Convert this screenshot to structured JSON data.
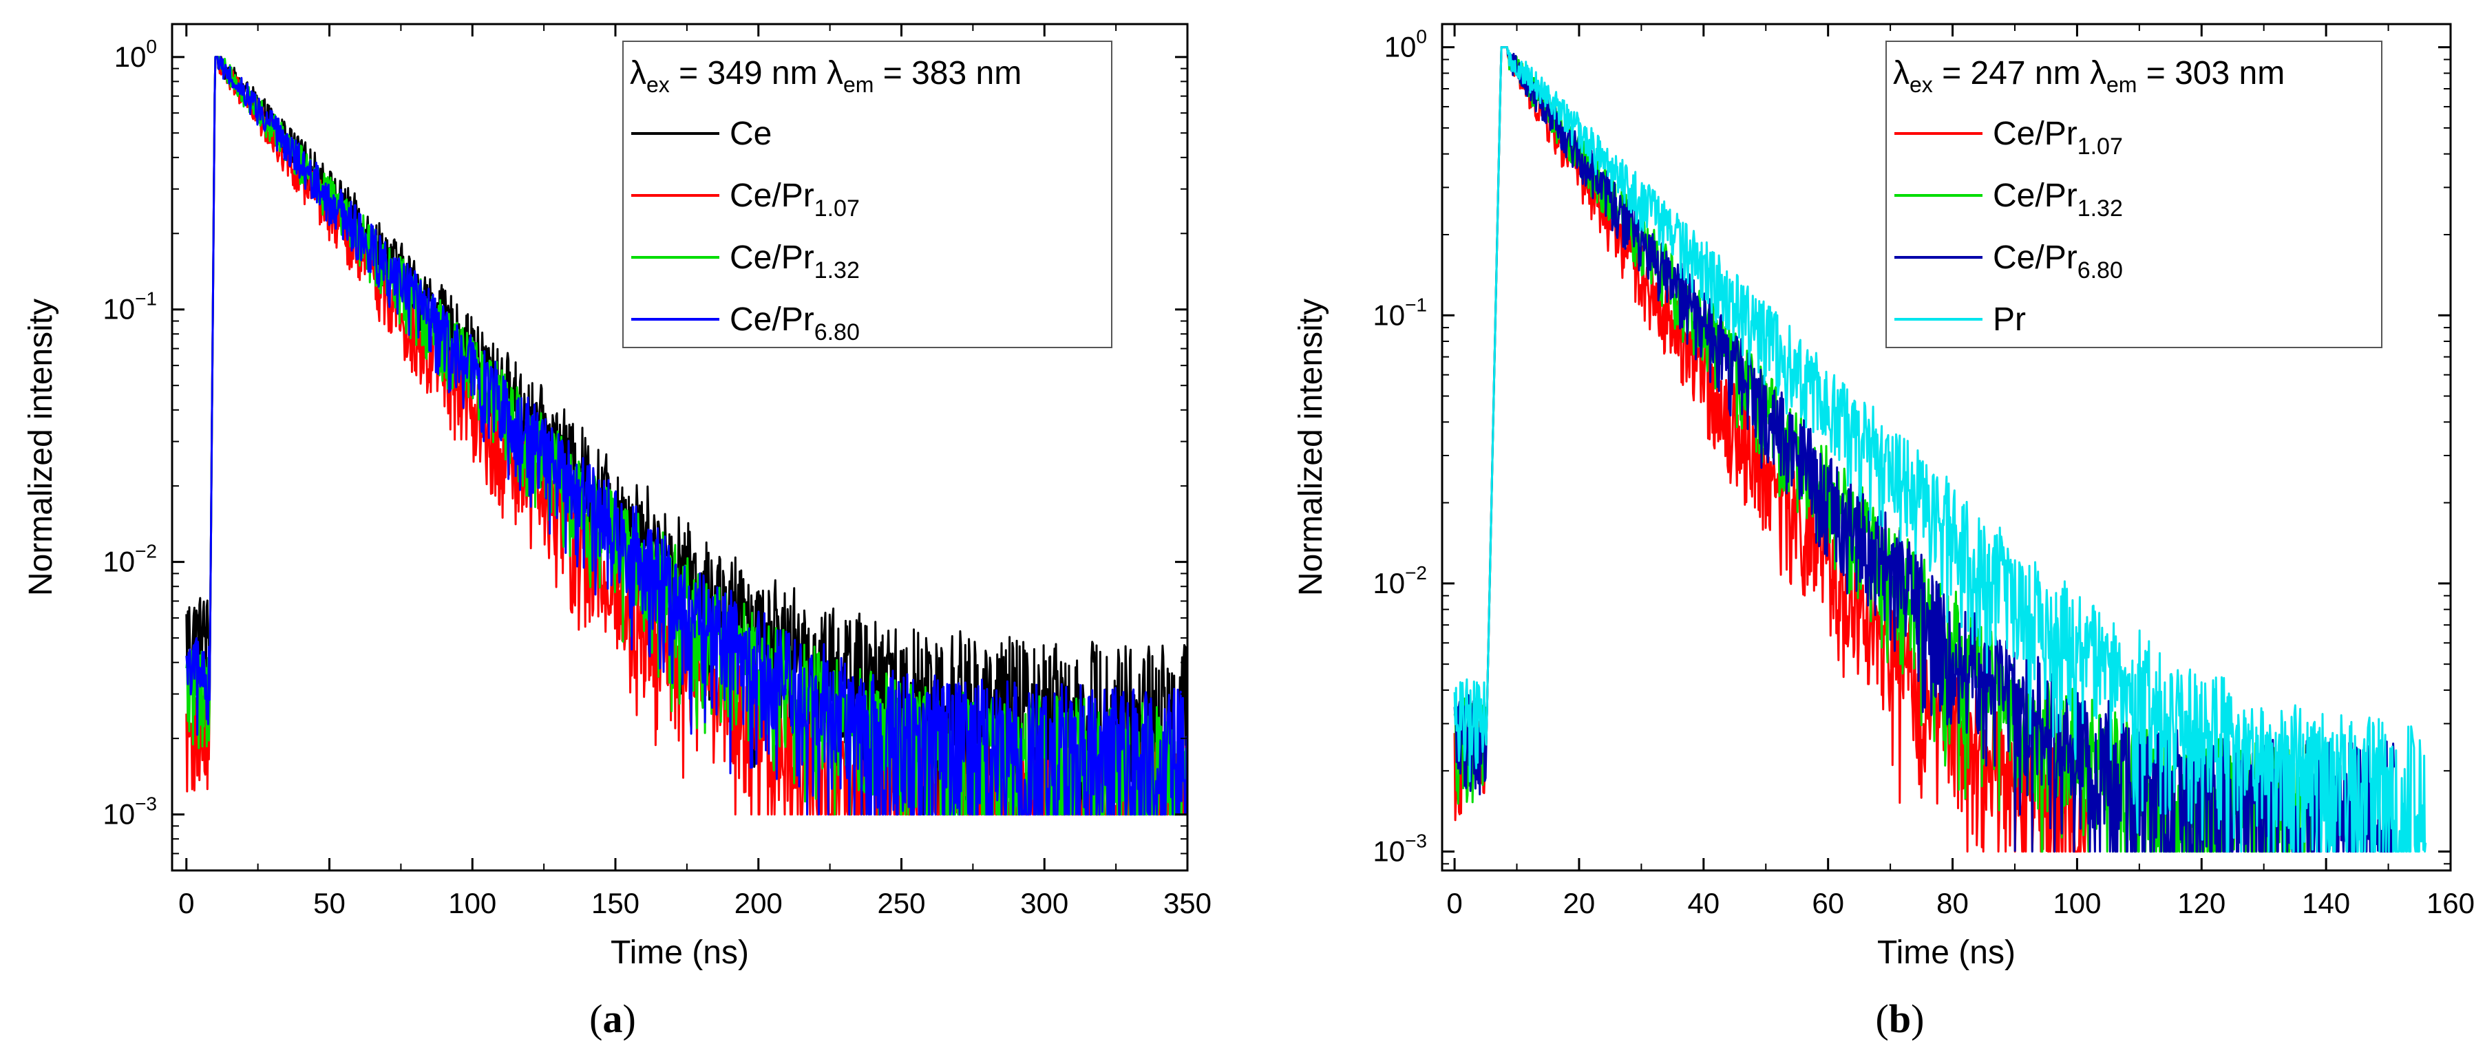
{
  "chart_data": [
    {
      "type": "line",
      "panel_label": "(a)",
      "xlabel": "Time (ns)",
      "ylabel": "Normalized intensity",
      "xscale": "linear",
      "yscale": "log",
      "xlim": [
        -5,
        350
      ],
      "ylim": [
        0.0006,
        1.35
      ],
      "xticks": [
        0,
        50,
        100,
        150,
        200,
        250,
        300,
        350
      ],
      "yticks": [
        {
          "value": 0.001,
          "base": "10",
          "exp": "−3"
        },
        {
          "value": 0.01,
          "base": "10",
          "exp": "−2"
        },
        {
          "value": 0.1,
          "base": "10",
          "exp": "−1"
        },
        {
          "value": 1,
          "base": "10",
          "exp": "0"
        }
      ],
      "legend": {
        "position": "top-right",
        "title_parts": [
          "λ",
          "ex",
          " = 349 nm ",
          "λ",
          "em",
          " = 383 nm"
        ]
      },
      "series": [
        {
          "name": "Ce",
          "label_main": "Ce",
          "label_sub": "",
          "color": "#000000",
          "onset_ns": 8,
          "peak_ns": 10,
          "decay_ns": 33,
          "floor": 0.003,
          "end_ns": 350
        },
        {
          "name": "Ce/Pr1.07",
          "label_main": "Ce/Pr",
          "label_sub": "1.07",
          "color": "#ff0000",
          "onset_ns": 8,
          "peak_ns": 10,
          "decay_ns": 28,
          "floor": 0.0012,
          "end_ns": 350
        },
        {
          "name": "Ce/Pr1.32",
          "label_main": "Ce/Pr",
          "label_sub": "1.32",
          "color": "#00dd00",
          "onset_ns": 8,
          "peak_ns": 10,
          "decay_ns": 31,
          "floor": 0.0018,
          "end_ns": 350
        },
        {
          "name": "Ce/Pr6.80",
          "label_main": "Ce/Pr",
          "label_sub": "6.80",
          "color": "#0000ff",
          "onset_ns": 8,
          "peak_ns": 10,
          "decay_ns": 31,
          "floor": 0.002,
          "end_ns": 350
        }
      ]
    },
    {
      "type": "line",
      "panel_label": "(b)",
      "xlabel": "Time (ns)",
      "ylabel": "Normalized intensity",
      "xscale": "linear",
      "yscale": "log",
      "xlim": [
        -2,
        160
      ],
      "ylim": [
        0.00085,
        1.22
      ],
      "xticks": [
        0,
        20,
        40,
        60,
        80,
        100,
        120,
        140,
        160
      ],
      "yticks": [
        {
          "value": 0.001,
          "base": "10",
          "exp": "−3"
        },
        {
          "value": 0.01,
          "base": "10",
          "exp": "−2"
        },
        {
          "value": 0.1,
          "base": "10",
          "exp": "−1"
        },
        {
          "value": 1,
          "base": "10",
          "exp": "0"
        }
      ],
      "legend": {
        "position": "top-right",
        "title_parts": [
          "λ",
          "ex",
          " = 247 nm ",
          "λ",
          "em",
          " = 303 nm"
        ]
      },
      "series": [
        {
          "name": "Ce/Pr1.07",
          "label_main": "Ce/Pr",
          "label_sub": "1.07",
          "color": "#ff0000",
          "onset_ns": 5,
          "peak_ns": 7.5,
          "decay_ns": 11.5,
          "floor": 0.0013,
          "end_ns": 102
        },
        {
          "name": "Ce/Pr1.32",
          "label_main": "Ce/Pr",
          "label_sub": "1.32",
          "color": "#00dd00",
          "onset_ns": 5,
          "peak_ns": 7.5,
          "decay_ns": 13.5,
          "floor": 0.0015,
          "end_ns": 138
        },
        {
          "name": "Ce/Pr6.80",
          "label_main": "Ce/Pr",
          "label_sub": "6.80",
          "color": "#0000aa",
          "onset_ns": 5,
          "peak_ns": 7.5,
          "decay_ns": 13.5,
          "floor": 0.0016,
          "end_ns": 151
        },
        {
          "name": "Pr",
          "label_main": "Pr",
          "label_sub": "",
          "color": "#00e5ee",
          "onset_ns": 5,
          "peak_ns": 7.5,
          "decay_ns": 17,
          "floor": 0.0018,
          "end_ns": 156
        }
      ]
    }
  ]
}
